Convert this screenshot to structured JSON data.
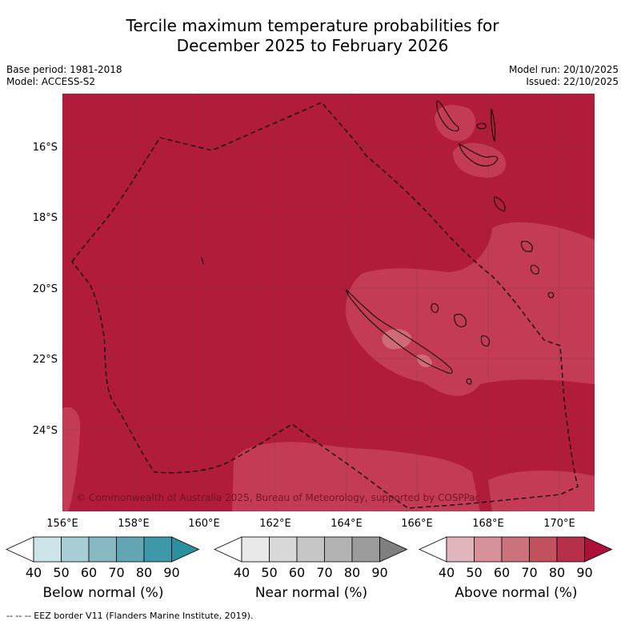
{
  "title": {
    "line1": "Tercile maximum temperature probabilities for",
    "line2": "December 2025 to February 2026"
  },
  "meta": {
    "base_period": "Base period: 1981-2018",
    "model": "Model: ACCESS-S2",
    "model_run": "Model run: 20/10/2025",
    "issued": "Issued: 22/10/2025"
  },
  "map": {
    "lat_labels": [
      "16°S",
      "18°S",
      "20°S",
      "22°S",
      "24°S"
    ],
    "lon_labels": [
      "156°E",
      "158°E",
      "160°E",
      "162°E",
      "164°E",
      "166°E",
      "168°E",
      "170°E"
    ],
    "copyright": "© Commonwealth of Australia 2025, Bureau of Meteorology, supported by COSPPac",
    "colors": {
      "above_80_90": "#b01c3a",
      "above_70_80": "#c33b55",
      "above_60_70": "#cf6b79"
    }
  },
  "legends": [
    {
      "label": "Below normal (%)",
      "ticks": [
        "40",
        "50",
        "60",
        "70",
        "80",
        "90"
      ],
      "colors": [
        "#ffffff",
        "#cce3e9",
        "#a9cdd4",
        "#88b9c3",
        "#63a5b2",
        "#3f98a9",
        "#2a8fa1"
      ]
    },
    {
      "label": "Near normal (%)",
      "ticks": [
        "40",
        "50",
        "60",
        "70",
        "80",
        "90"
      ],
      "colors": [
        "#ffffff",
        "#e8e8e8",
        "#d8d8d8",
        "#c6c6c6",
        "#b3b3b3",
        "#9b9b9b",
        "#7f7f7f"
      ]
    },
    {
      "label": "Above normal (%)",
      "ticks": [
        "40",
        "50",
        "60",
        "70",
        "80",
        "90"
      ],
      "colors": [
        "#ffffff",
        "#e1b6bd",
        "#d79199",
        "#cc727c",
        "#c1515e",
        "#b63049",
        "#ad1137"
      ]
    }
  ],
  "footer": "--  --  -- EEZ border V11 (Flanders Marine Institute, 2019)."
}
